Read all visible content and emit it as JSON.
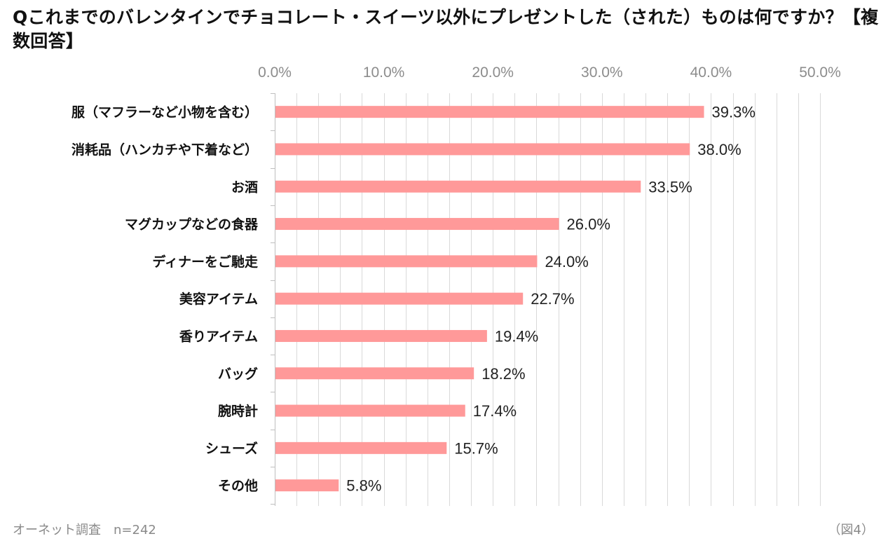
{
  "title": "Qこれまでのバレンタインでチョコレート・スイーツ以外にプレゼントした（された）ものは何ですか？【複数回答】",
  "footer": {
    "source": "オーネット調査　n=242",
    "figure": "（図4）"
  },
  "colors": {
    "bar": "#ff9999",
    "grid": "#d9d9d9",
    "axis": "#bfbfbf",
    "tick_text": "#8c8c8c",
    "category_text": "#111111",
    "value_text": "#222222"
  },
  "chart_data": {
    "type": "bar",
    "orientation": "horizontal",
    "title": "Qこれまでのバレンタインでチョコレート・スイーツ以外にプレゼントした（された）ものは何ですか？【複数回答】",
    "xlabel": "",
    "ylabel": "",
    "xlim": [
      0,
      50
    ],
    "major_ticks": [
      0,
      10,
      20,
      30,
      40,
      50
    ],
    "minor_step": 2,
    "tick_labels": [
      "0.0%",
      "10.0%",
      "20.0%",
      "30.0%",
      "40.0%",
      "50.0%"
    ],
    "tick_position": "top",
    "grid": true,
    "categories": [
      "服（マフラーなど小物を含む）",
      "消耗品（ハンカチや下着など）",
      "お酒",
      "マグカップなどの食器",
      "ディナーをご馳走",
      "美容アイテム",
      "香りアイテム",
      "バッグ",
      "腕時計",
      "シューズ",
      "その他"
    ],
    "values": [
      39.3,
      38.0,
      33.5,
      26.0,
      24.0,
      22.7,
      19.4,
      18.2,
      17.4,
      15.7,
      5.8
    ],
    "value_labels": [
      "39.3%",
      "38.0%",
      "33.5%",
      "26.0%",
      "24.0%",
      "22.7%",
      "19.4%",
      "18.2%",
      "17.4%",
      "15.7%",
      "5.8%"
    ]
  }
}
